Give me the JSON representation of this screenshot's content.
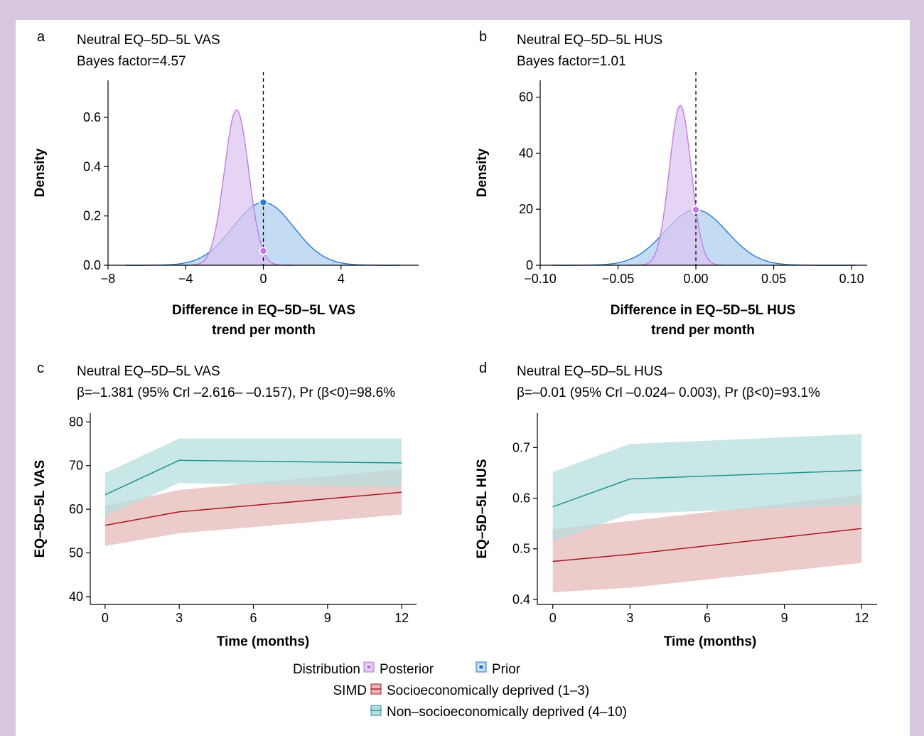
{
  "chart_data": [
    {
      "panel": "a",
      "type": "area",
      "title": "Neutral EQ–5D–5L VAS",
      "subtitle": "Bayes factor=4.57",
      "xlabel": [
        "Difference in EQ–5D–5L VAS",
        "trend per month"
      ],
      "ylabel": "Density",
      "xlim": [
        -8,
        8
      ],
      "ylim": [
        0,
        0.75
      ],
      "xticks": [
        -8,
        -4,
        0,
        4
      ],
      "xtick_labels": [
        "−8",
        "−4",
        "0",
        "4"
      ],
      "yticks": [
        0,
        0.2,
        0.4,
        0.6
      ],
      "ytick_labels": [
        "0.0",
        "0.2",
        "0.4",
        "0.6"
      ],
      "reference_line_x": 0,
      "series": [
        {
          "name": "Prior",
          "kind": "normal",
          "mean": 0,
          "sd": 1.57,
          "peak": 0.255,
          "range": [
            -7.1,
            7.0
          ],
          "color": "#2b7bd6",
          "fill": "#bcd7f2",
          "point_x": 0,
          "point_y": 0.255
        },
        {
          "name": "Posterior",
          "kind": "normal",
          "mean": -1.38,
          "sd": 0.63,
          "peak": 0.63,
          "range": [
            -4.2,
            1.6
          ],
          "color": "#c27be6",
          "fill": "#dcc4f1",
          "point_x": 0,
          "point_y": 0.058
        }
      ]
    },
    {
      "panel": "b",
      "type": "area",
      "title": "Neutral EQ–5D–5L HUS",
      "subtitle": "Bayes factor=1.01",
      "xlabel": [
        "Difference in EQ–5D–5L HUS",
        "trend per month"
      ],
      "ylabel": "Density",
      "xlim": [
        -0.1,
        0.11
      ],
      "ylim": [
        0,
        66
      ],
      "xticks": [
        -0.1,
        -0.05,
        0,
        0.05,
        0.1
      ],
      "xtick_labels": [
        "−0.10",
        "−0.05",
        "0.00",
        "0.05",
        "0.10"
      ],
      "yticks": [
        0,
        20,
        40,
        60
      ],
      "ytick_labels": [
        "0",
        "20",
        "40",
        "60"
      ],
      "reference_line_x": 0,
      "series": [
        {
          "name": "Prior",
          "kind": "normal",
          "mean": 0,
          "sd": 0.02,
          "peak": 19.8,
          "range": [
            -0.092,
            0.103
          ],
          "color": "#2b7bd6",
          "fill": "#bcd7f2",
          "point_x": 0,
          "point_y": 19.8
        },
        {
          "name": "Posterior",
          "kind": "normal",
          "mean": -0.01,
          "sd": 0.007,
          "peak": 57,
          "range": [
            -0.044,
            0.018
          ],
          "color": "#c27be6",
          "fill": "#dcc4f1",
          "point_x": 0,
          "point_y": 19.8
        }
      ]
    },
    {
      "panel": "c",
      "type": "line",
      "title": "Neutral EQ–5D–5L VAS",
      "subtitle": "β=–1.381 (95% Crl –2.616– –0.157), Pr (β<0)=98.6%",
      "xlabel": "Time (months)",
      "ylabel": "EQ–5D–5L VAS",
      "xlim": [
        -0.6,
        12.6
      ],
      "ylim": [
        38.2,
        82
      ],
      "xticks": [
        0,
        3,
        6,
        9,
        12
      ],
      "yticks": [
        40,
        50,
        60,
        70,
        80
      ],
      "x": [
        0,
        3,
        12
      ],
      "series": [
        {
          "name": "Socioeconomically deprived (1–3)",
          "values": [
            56.3,
            59.4,
            63.9
          ],
          "lower": [
            51.6,
            54.5,
            58.8
          ],
          "upper": [
            60.8,
            64.4,
            69.2
          ],
          "color": "#a8191f",
          "fill": "#e3b8b6"
        },
        {
          "name": "Non–socioeconomically deprived (4–10)",
          "values": [
            63.3,
            71.2,
            70.6
          ],
          "lower": [
            58.4,
            66.0,
            65.1
          ],
          "upper": [
            68.3,
            76.2,
            76.2
          ],
          "color": "#1c9592",
          "fill": "#b6dede"
        }
      ]
    },
    {
      "panel": "d",
      "type": "line",
      "title": "Neutral EQ–5D–5L HUS",
      "subtitle": "β=–0.01 (95% Crl –0.024– 0.003), Pr (β<0)=93.1%",
      "xlabel": "Time (months)",
      "ylabel": "EQ–5D–5L HUS",
      "xlim": [
        -0.6,
        12.6
      ],
      "ylim": [
        0.39,
        0.768
      ],
      "xticks": [
        0,
        3,
        6,
        9,
        12
      ],
      "yticks": [
        0.4,
        0.5,
        0.6,
        0.7
      ],
      "ytick_labels": [
        "0.4",
        "0.5",
        "0.6",
        "0.7"
      ],
      "x": [
        0,
        3,
        12
      ],
      "series": [
        {
          "name": "Socioeconomically deprived (1–3)",
          "values": [
            0.475,
            0.489,
            0.54
          ],
          "lower": [
            0.414,
            0.423,
            0.472
          ],
          "upper": [
            0.539,
            0.555,
            0.607
          ],
          "color": "#a8191f",
          "fill": "#e3b8b6"
        },
        {
          "name": "Non–socioeconomically deprived (4–10)",
          "values": [
            0.583,
            0.638,
            0.655
          ],
          "lower": [
            0.515,
            0.569,
            0.587
          ],
          "upper": [
            0.652,
            0.707,
            0.727
          ],
          "color": "#1c9592",
          "fill": "#b6dede"
        }
      ]
    }
  ],
  "legend": {
    "distribution_title": "Distribution",
    "distribution_items": [
      "Posterior",
      "Prior"
    ],
    "simd_title": "SIMD",
    "simd_items": [
      "Socioeconomically deprived (1–3)",
      "Non–socioeconomically deprived (4–10)"
    ],
    "colors": {
      "posterior_line": "#c27be6",
      "posterior_fill": "#dcc4f1",
      "prior_line": "#2b7bd6",
      "prior_fill": "#bcd7f2",
      "deprived_line": "#a8191f",
      "deprived_fill": "#e3b8b6",
      "nondeprived_line": "#1c9592",
      "nondeprived_fill": "#b6dede"
    }
  }
}
